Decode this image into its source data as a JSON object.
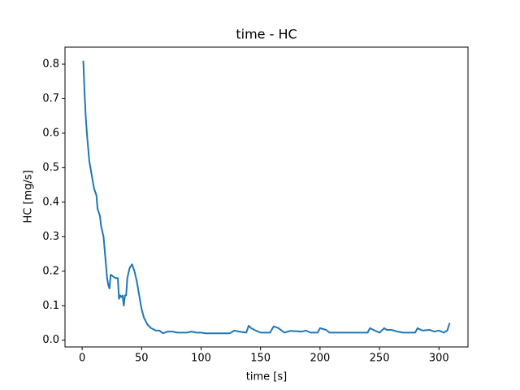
{
  "chart_data": {
    "type": "line",
    "title": "time - HC",
    "xlabel": "time [s]",
    "ylabel": "HC [mg/s]",
    "x": [
      1,
      2,
      3,
      4,
      5,
      6,
      8,
      10,
      12,
      13,
      15,
      16,
      18,
      19,
      20,
      21,
      22,
      23,
      24,
      26,
      28,
      30,
      31,
      32,
      33,
      34,
      35,
      36,
      37,
      38,
      40,
      42,
      44,
      46,
      48,
      50,
      52,
      55,
      58,
      62,
      65,
      68,
      72,
      76,
      80,
      88,
      92,
      96,
      100,
      104,
      124,
      128,
      132,
      138,
      140,
      142,
      146,
      150,
      158,
      161,
      165,
      170,
      175,
      185,
      188,
      192,
      198,
      200,
      205,
      208,
      240,
      242,
      246,
      250,
      254,
      256,
      260,
      265,
      270,
      280,
      282,
      286,
      292,
      296,
      300,
      304,
      307,
      309
    ],
    "series": [
      {
        "name": "HC",
        "color": "#1f77b4",
        "values": [
          0.81,
          0.72,
          0.65,
          0.6,
          0.56,
          0.52,
          0.48,
          0.44,
          0.42,
          0.38,
          0.36,
          0.33,
          0.3,
          0.26,
          0.22,
          0.18,
          0.16,
          0.15,
          0.19,
          0.185,
          0.18,
          0.18,
          0.12,
          0.13,
          0.125,
          0.13,
          0.1,
          0.13,
          0.13,
          0.18,
          0.21,
          0.22,
          0.2,
          0.17,
          0.13,
          0.09,
          0.065,
          0.045,
          0.035,
          0.028,
          0.028,
          0.02,
          0.025,
          0.025,
          0.022,
          0.022,
          0.025,
          0.022,
          0.022,
          0.02,
          0.02,
          0.028,
          0.025,
          0.022,
          0.042,
          0.035,
          0.028,
          0.022,
          0.022,
          0.04,
          0.035,
          0.022,
          0.027,
          0.025,
          0.028,
          0.022,
          0.022,
          0.035,
          0.03,
          0.022,
          0.022,
          0.035,
          0.028,
          0.022,
          0.035,
          0.03,
          0.03,
          0.025,
          0.022,
          0.022,
          0.035,
          0.028,
          0.03,
          0.025,
          0.028,
          0.022,
          0.028,
          0.05
        ]
      }
    ],
    "xlim": [
      -14.4,
      324.4
    ],
    "ylim": [
      -0.0195,
      0.8495
    ],
    "xticks": [
      0,
      50,
      100,
      150,
      200,
      250,
      300
    ],
    "yticks": [
      {
        "value": 0,
        "label": "0.0"
      },
      0.1,
      0.2,
      0.3,
      0.4,
      0.5,
      0.6,
      0.7,
      0.8
    ]
  }
}
